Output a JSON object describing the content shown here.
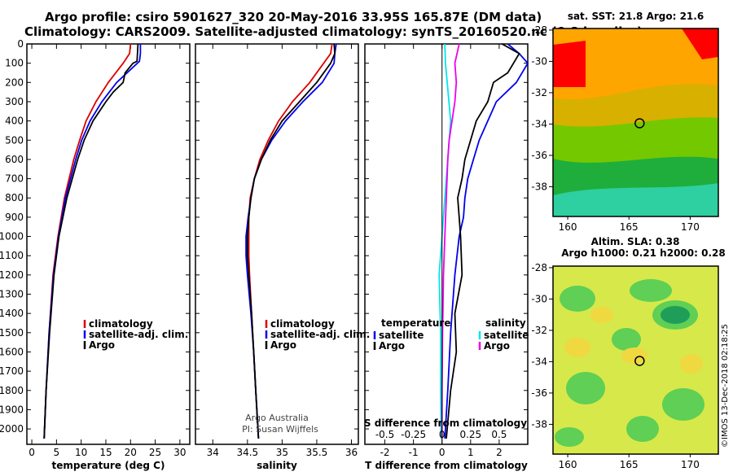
{
  "header": {
    "line1": "Argo profile: csiro 5901627_320 20-May-2016 33.95S 165.87E (DM data)",
    "line2": "Climatology: CARS2009. Satellite-adjusted climatology: synTS_20160520.nc (0.8d earlier)"
  },
  "colors": {
    "climatology": "#dd0000",
    "satellite": "#0000ee",
    "argo": "#000000",
    "sat_salinity": "#00e5ee",
    "argo_salinity": "#ee00ee"
  },
  "credit": {
    "line1": "Argo Australia",
    "line2": "PI: Susan Wijffels"
  },
  "watermark": "©IMOS 13-Dec-2018 02:18:25",
  "chart_data": [
    {
      "type": "line",
      "xlabel": "temperature (deg C)",
      "xlim": [
        -1,
        32
      ],
      "ylim": [
        2080,
        0
      ],
      "yticks": [
        0,
        100,
        200,
        300,
        400,
        500,
        600,
        700,
        800,
        900,
        1000,
        1100,
        1200,
        1300,
        1400,
        1500,
        1600,
        1700,
        1800,
        1900,
        2000
      ],
      "xticks": [
        0,
        5,
        10,
        15,
        20,
        25,
        30
      ],
      "legend": [
        "climatology",
        "satellite-adj. clim.",
        "Argo"
      ],
      "legend_placement": "bottom-center",
      "series": [
        {
          "name": "climatology",
          "color": "#dd0000",
          "depth": [
            0,
            50,
            100,
            200,
            300,
            400,
            500,
            600,
            800,
            1000,
            1200,
            1500,
            1800,
            2050
          ],
          "values": [
            20,
            19.8,
            18.5,
            15.5,
            13,
            11,
            9.7,
            8.5,
            6.6,
            5.3,
            4.3,
            3.5,
            2.9,
            2.5
          ]
        },
        {
          "name": "satellite-adj. clim.",
          "color": "#0000ee",
          "depth": [
            0,
            50,
            90,
            200,
            300,
            400,
            500,
            600,
            800,
            1000,
            1200,
            1500,
            1800,
            2050
          ],
          "values": [
            22,
            22,
            21.8,
            17.2,
            14.2,
            11.8,
            10.1,
            8.9,
            6.8,
            5.4,
            4.4,
            3.5,
            2.9,
            2.5
          ]
        },
        {
          "name": "Argo",
          "color": "#000000",
          "depth": [
            0,
            50,
            90,
            100,
            150,
            200,
            250,
            300,
            400,
            500,
            600,
            800,
            1000,
            1200,
            1500,
            1800,
            2050
          ],
          "values": [
            21.5,
            21.4,
            21.3,
            20.5,
            18.9,
            18.5,
            16.5,
            15,
            12.4,
            10.6,
            9.3,
            7.1,
            5.5,
            4.5,
            3.6,
            2.9,
            2.5
          ]
        }
      ]
    },
    {
      "type": "line",
      "xlabel": "salinity",
      "xlim": [
        33.75,
        36.1
      ],
      "ylim": [
        2080,
        0
      ],
      "xticks": [
        34,
        34.5,
        35,
        35.5,
        36
      ],
      "legend": [
        "climatology",
        "satellite-adj. clim.",
        "Argo"
      ],
      "legend_placement": "bottom-center",
      "series": [
        {
          "name": "climatology",
          "color": "#dd0000",
          "depth": [
            0,
            50,
            100,
            200,
            300,
            400,
            500,
            600,
            700,
            800,
            900,
            1000,
            1100,
            1200,
            1400,
            1600,
            1800,
            2050
          ],
          "values": [
            35.72,
            35.7,
            35.6,
            35.4,
            35.15,
            34.95,
            34.8,
            34.68,
            34.6,
            34.54,
            34.52,
            34.52,
            34.52,
            34.53,
            34.56,
            34.59,
            34.62,
            34.66
          ]
        },
        {
          "name": "satellite-adj. clim.",
          "color": "#0000ee",
          "depth": [
            0,
            50,
            100,
            200,
            300,
            400,
            500,
            600,
            700,
            800,
            900,
            1000,
            1100,
            1200,
            1400,
            1600,
            1800,
            2050
          ],
          "values": [
            35.78,
            35.76,
            35.75,
            35.58,
            35.3,
            35.05,
            34.85,
            34.7,
            34.6,
            34.55,
            34.51,
            34.48,
            34.48,
            34.5,
            34.55,
            34.59,
            34.62,
            34.66
          ]
        },
        {
          "name": "Argo",
          "color": "#000000",
          "depth": [
            0,
            50,
            100,
            200,
            300,
            400,
            500,
            600,
            700,
            800,
            900,
            1000,
            1100,
            1200,
            1400,
            1600,
            1800,
            2050
          ],
          "values": [
            35.75,
            35.76,
            35.7,
            35.5,
            35.25,
            35.0,
            34.83,
            34.7,
            34.6,
            34.55,
            34.52,
            34.5,
            34.5,
            34.52,
            34.56,
            34.59,
            34.62,
            34.66
          ]
        }
      ]
    },
    {
      "type": "line",
      "xlabel": "T difference from climatology",
      "top_axis_label": "S difference from climatology",
      "xlim": [
        -2.7,
        3.0
      ],
      "ylim": [
        2080,
        0
      ],
      "xticks": [
        -2,
        -1,
        0,
        1,
        2
      ],
      "top_ticks": [
        "-0.5",
        "-0.25",
        "0",
        "0.25",
        "0.5"
      ],
      "legend_temperature": {
        "title": "temperature",
        "items": [
          "satellite",
          "Argo"
        ]
      },
      "legend_salinity": {
        "title": "salinity",
        "items": [
          "satellite",
          "Argo"
        ]
      },
      "series": [
        {
          "name": "T satellite",
          "color": "#0000ee",
          "depth": [
            0,
            50,
            100,
            200,
            300,
            400,
            500,
            600,
            700,
            800,
            900,
            1000,
            1200,
            1500,
            1800,
            2050
          ],
          "values": [
            2.3,
            2.7,
            3.0,
            2.6,
            1.9,
            1.6,
            1.3,
            1.1,
            0.9,
            0.8,
            0.75,
            0.6,
            0.45,
            0.3,
            0.2,
            0.1
          ]
        },
        {
          "name": "T Argo",
          "color": "#000000",
          "depth": [
            0,
            50,
            100,
            150,
            200,
            300,
            400,
            500,
            600,
            700,
            800,
            900,
            1000,
            1200,
            1400,
            1600,
            1800,
            2050
          ],
          "values": [
            2.1,
            2.7,
            2.5,
            2.3,
            1.8,
            1.6,
            1.2,
            1.0,
            0.8,
            0.7,
            0.55,
            0.6,
            0.65,
            0.7,
            0.45,
            0.5,
            0.3,
            0.15
          ]
        },
        {
          "name": "S satellite",
          "color": "#00e5ee",
          "depth": [
            0,
            100,
            200,
            400,
            600,
            800,
            1000,
            1200,
            1500,
            1800,
            2050
          ],
          "values": [
            0.1,
            0.12,
            0.18,
            0.3,
            0.2,
            0.1,
            0.0,
            -0.1,
            -0.05,
            -0.05,
            -0.03
          ]
        },
        {
          "name": "S Argo",
          "color": "#ee00ee",
          "depth": [
            0,
            100,
            200,
            300,
            400,
            500,
            600,
            800,
            1000,
            1200,
            1500,
            1800,
            2050
          ],
          "values": [
            0.6,
            0.45,
            0.5,
            0.45,
            0.35,
            0.25,
            0.2,
            0.15,
            0.1,
            0.05,
            0.02,
            0.0,
            0.0
          ]
        }
      ]
    },
    {
      "type": "heatmap",
      "title": "sat. SST: 21.8 Argo: 21.6",
      "xticks": [
        160,
        165,
        170
      ],
      "yticks": [
        -28,
        -30,
        -32,
        -34,
        -36,
        -38
      ],
      "marker": {
        "lon": 165.87,
        "lat": -33.95
      }
    },
    {
      "type": "heatmap",
      "title_line1": "Altim. SLA: 0.38",
      "title_line2": "Argo h1000: 0.21 h2000: 0.28",
      "xticks": [
        160,
        165,
        170
      ],
      "yticks": [
        -28,
        -30,
        -32,
        -34,
        -36,
        -38
      ],
      "marker": {
        "lon": 165.87,
        "lat": -33.95
      }
    }
  ]
}
